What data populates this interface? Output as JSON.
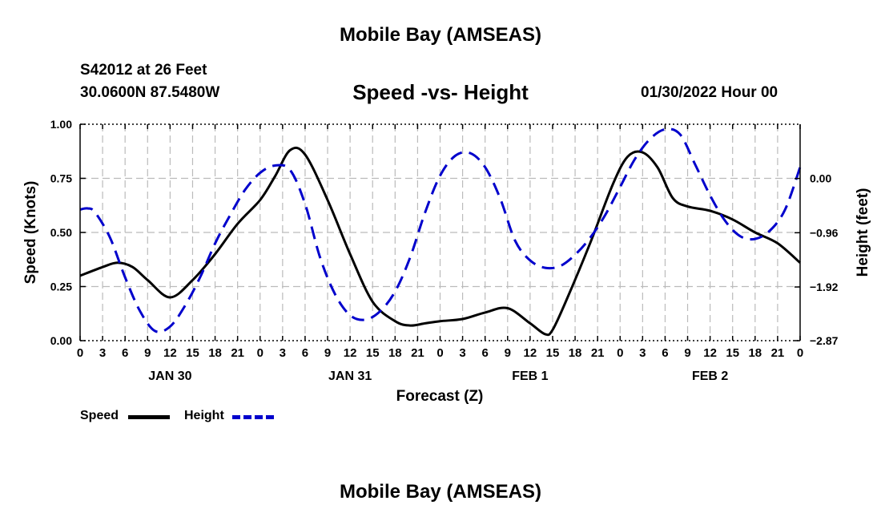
{
  "page": {
    "title_top": "Mobile Bay (AMSEAS)",
    "title_bottom": "Mobile Bay (AMSEAS)",
    "station": "S42012 at 26 Feet",
    "coords": "30.0600N  87.5480W",
    "chart_title": "Speed -vs- Height",
    "datetime": "01/30/2022 Hour 00"
  },
  "colors": {
    "speed": "#000000",
    "height": "#0000cc",
    "grid": "#bbbbbb"
  },
  "chart_data": {
    "type": "line",
    "title": "Speed -vs- Height",
    "xlabel": "Forecast (Z)",
    "ylabel": "Speed (Knots)",
    "y2label": "Height (feet)",
    "xlim": [
      0,
      96
    ],
    "ylim": [
      0,
      1.0
    ],
    "y2lim": [
      -2.87,
      0.96
    ],
    "x_ticks": [
      0,
      3,
      6,
      9,
      12,
      15,
      18,
      21,
      24,
      27,
      30,
      33,
      36,
      39,
      42,
      45,
      48,
      51,
      54,
      57,
      60,
      63,
      66,
      69,
      72,
      75,
      78,
      81,
      84,
      87,
      90,
      93,
      96
    ],
    "x_tick_labels": [
      "0",
      "3",
      "6",
      "9",
      "12",
      "15",
      "18",
      "21",
      "0",
      "3",
      "6",
      "9",
      "12",
      "15",
      "18",
      "21",
      "0",
      "3",
      "6",
      "9",
      "12",
      "15",
      "18",
      "21",
      "0",
      "3",
      "6",
      "9",
      "12",
      "15",
      "18",
      "21",
      "0"
    ],
    "date_labels": [
      {
        "x": 12,
        "label": "JAN 30"
      },
      {
        "x": 36,
        "label": "JAN 31"
      },
      {
        "x": 60,
        "label": "FEB 1"
      },
      {
        "x": 84,
        "label": "FEB 2"
      }
    ],
    "y_ticks": [
      0.0,
      0.25,
      0.5,
      0.75,
      1.0
    ],
    "y_tick_labels": [
      "0.00",
      "0.25",
      "0.50",
      "0.75",
      "1.00"
    ],
    "y2_ticks": [
      -2.87,
      -1.92,
      -0.96,
      0.0
    ],
    "y2_tick_labels": [
      "−2.87",
      "−1.92",
      "−0.96",
      "0.00"
    ],
    "grid": true,
    "legend": "bottom-left",
    "series": [
      {
        "name": "Speed",
        "axis": "left",
        "style": "solid",
        "x": [
          0,
          3,
          5,
          7,
          9,
          12,
          15,
          18,
          21,
          24,
          26,
          28,
          30,
          33,
          36,
          39,
          42,
          44,
          46,
          48,
          51,
          54,
          57,
          60,
          62,
          63,
          65,
          68,
          71,
          73,
          75,
          77,
          79,
          81,
          84,
          87,
          90,
          93,
          96
        ],
        "values": [
          0.3,
          0.34,
          0.36,
          0.34,
          0.28,
          0.2,
          0.28,
          0.4,
          0.54,
          0.65,
          0.76,
          0.88,
          0.86,
          0.65,
          0.4,
          0.18,
          0.09,
          0.07,
          0.08,
          0.09,
          0.1,
          0.13,
          0.15,
          0.08,
          0.03,
          0.05,
          0.2,
          0.45,
          0.72,
          0.85,
          0.87,
          0.8,
          0.66,
          0.62,
          0.6,
          0.56,
          0.5,
          0.45,
          0.36
        ]
      },
      {
        "name": "Height",
        "axis": "right",
        "style": "dashed",
        "x": [
          0,
          1,
          2,
          4,
          6,
          8,
          10,
          12,
          14,
          16,
          18,
          20,
          22,
          24,
          26,
          28,
          30,
          32,
          34,
          36,
          38,
          40,
          42,
          44,
          46,
          48,
          50,
          52,
          54,
          56,
          58,
          60,
          62,
          64,
          66,
          68,
          70,
          72,
          74,
          76,
          78,
          80,
          82,
          84,
          86,
          88,
          90,
          92,
          94,
          96
        ],
        "values": [
          -0.55,
          -0.53,
          -0.6,
          -1.05,
          -1.75,
          -2.35,
          -2.7,
          -2.62,
          -2.25,
          -1.75,
          -1.15,
          -0.65,
          -0.2,
          0.1,
          0.23,
          0.15,
          -0.45,
          -1.4,
          -2.05,
          -2.42,
          -2.5,
          -2.35,
          -2.0,
          -1.4,
          -0.6,
          0.05,
          0.4,
          0.45,
          0.2,
          -0.35,
          -1.1,
          -1.45,
          -1.58,
          -1.55,
          -1.35,
          -1.05,
          -0.65,
          -0.15,
          0.35,
          0.7,
          0.87,
          0.78,
          0.25,
          -0.3,
          -0.75,
          -1.02,
          -1.07,
          -0.92,
          -0.55,
          0.2
        ]
      }
    ]
  }
}
